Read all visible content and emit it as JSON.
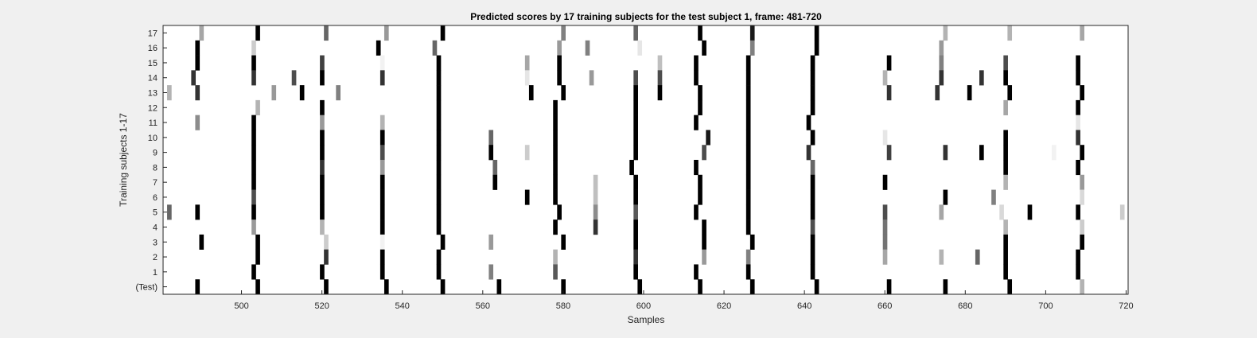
{
  "chart_data": {
    "type": "heatmap",
    "title": "Predicted scores by 17 training subjects for the test subject 1, frame: 481-720",
    "xlabel": "Samples",
    "ylabel": "Training subjects 1-17",
    "xlim": [
      481,
      720
    ],
    "xticks": [
      500,
      520,
      540,
      560,
      580,
      600,
      620,
      640,
      660,
      680,
      700,
      720
    ],
    "rows": [
      "17",
      "16",
      "15",
      "14",
      "13",
      "12",
      "11",
      "10",
      "9",
      "8",
      "7",
      "6",
      "5",
      "4",
      "3",
      "2",
      "1",
      "(Test)"
    ],
    "colormap": "gray (1 = black, 0 = white)",
    "grid": false,
    "cells": [
      {
        "row": "17",
        "points": [
          [
            490,
            0.35
          ],
          [
            504,
            1
          ],
          [
            521,
            0.6
          ],
          [
            536,
            0.4
          ],
          [
            550,
            1
          ],
          [
            580,
            0.5
          ],
          [
            598,
            0.6
          ],
          [
            614,
            1
          ],
          [
            627,
            0.9
          ],
          [
            643,
            1
          ],
          [
            675,
            0.3
          ],
          [
            691,
            0.3
          ],
          [
            709,
            0.35
          ]
        ]
      },
      {
        "row": "16",
        "points": [
          [
            489,
            1
          ],
          [
            503,
            0.2
          ],
          [
            534,
            1
          ],
          [
            548,
            0.6
          ],
          [
            579,
            0.4
          ],
          [
            586,
            0.5
          ],
          [
            599,
            0.1
          ],
          [
            615,
            1
          ],
          [
            627,
            0.5
          ],
          [
            643,
            1
          ],
          [
            674,
            0.4
          ]
        ]
      },
      {
        "row": "15",
        "points": [
          [
            489,
            1
          ],
          [
            503,
            1
          ],
          [
            520,
            0.75
          ],
          [
            535,
            0.05
          ],
          [
            549,
            1
          ],
          [
            571,
            0.35
          ],
          [
            579,
            1
          ],
          [
            604,
            0.25
          ],
          [
            613,
            1
          ],
          [
            626,
            1
          ],
          [
            642,
            1
          ],
          [
            661,
            1
          ],
          [
            674,
            0.5
          ],
          [
            690,
            0.7
          ],
          [
            708,
            1
          ]
        ]
      },
      {
        "row": "14",
        "points": [
          [
            488,
            0.8
          ],
          [
            503,
            0.8
          ],
          [
            513,
            0.7
          ],
          [
            520,
            1
          ],
          [
            535,
            0.8
          ],
          [
            549,
            1
          ],
          [
            571,
            0.1
          ],
          [
            579,
            1
          ],
          [
            587,
            0.4
          ],
          [
            598,
            0.7
          ],
          [
            604,
            0.7
          ],
          [
            613,
            1
          ],
          [
            626,
            1
          ],
          [
            642,
            1
          ],
          [
            660,
            0.3
          ],
          [
            674,
            0.8
          ],
          [
            684,
            0.8
          ],
          [
            690,
            1
          ],
          [
            708,
            1
          ]
        ]
      },
      {
        "row": "13",
        "points": [
          [
            482,
            0.3
          ],
          [
            489,
            0.8
          ],
          [
            508,
            0.4
          ],
          [
            515,
            1
          ],
          [
            524,
            0.5
          ],
          [
            549,
            1
          ],
          [
            572,
            1
          ],
          [
            580,
            1
          ],
          [
            598,
            1
          ],
          [
            604,
            1
          ],
          [
            614,
            1
          ],
          [
            626,
            1
          ],
          [
            642,
            1
          ],
          [
            661,
            0.8
          ],
          [
            673,
            0.8
          ],
          [
            681,
            1
          ],
          [
            691,
            1
          ],
          [
            709,
            1
          ]
        ]
      },
      {
        "row": "12",
        "points": [
          [
            504,
            0.3
          ],
          [
            520,
            1
          ],
          [
            549,
            1
          ],
          [
            578,
            1
          ],
          [
            598,
            1
          ],
          [
            614,
            1
          ],
          [
            626,
            1
          ],
          [
            642,
            1
          ],
          [
            690,
            0.35
          ],
          [
            708,
            1
          ]
        ]
      },
      {
        "row": "11",
        "points": [
          [
            489,
            0.45
          ],
          [
            503,
            1
          ],
          [
            520,
            0.4
          ],
          [
            535,
            0.3
          ],
          [
            549,
            1
          ],
          [
            578,
            1
          ],
          [
            598,
            1
          ],
          [
            613,
            1
          ],
          [
            626,
            1
          ],
          [
            641,
            1
          ],
          [
            708,
            0.1
          ]
        ]
      },
      {
        "row": "10",
        "points": [
          [
            503,
            1
          ],
          [
            520,
            1
          ],
          [
            535,
            1
          ],
          [
            549,
            1
          ],
          [
            562,
            0.6
          ],
          [
            578,
            1
          ],
          [
            598,
            1
          ],
          [
            616,
            0.9
          ],
          [
            626,
            1
          ],
          [
            642,
            1
          ],
          [
            660,
            0.1
          ],
          [
            690,
            1
          ],
          [
            708,
            0.8
          ]
        ]
      },
      {
        "row": "9",
        "points": [
          [
            503,
            1
          ],
          [
            520,
            1
          ],
          [
            535,
            0.7
          ],
          [
            549,
            1
          ],
          [
            562,
            1
          ],
          [
            571,
            0.2
          ],
          [
            578,
            1
          ],
          [
            598,
            1
          ],
          [
            615,
            0.7
          ],
          [
            626,
            1
          ],
          [
            641,
            0.8
          ],
          [
            661,
            0.75
          ],
          [
            675,
            0.8
          ],
          [
            684,
            1
          ],
          [
            690,
            1
          ],
          [
            702,
            0.05
          ],
          [
            709,
            1
          ]
        ]
      },
      {
        "row": "8",
        "points": [
          [
            503,
            1
          ],
          [
            520,
            0.8
          ],
          [
            535,
            0.4
          ],
          [
            549,
            1
          ],
          [
            563,
            0.6
          ],
          [
            578,
            1
          ],
          [
            597,
            1
          ],
          [
            613,
            1
          ],
          [
            626,
            1
          ],
          [
            642,
            0.6
          ],
          [
            690,
            1
          ],
          [
            708,
            1
          ]
        ]
      },
      {
        "row": "7",
        "points": [
          [
            503,
            1
          ],
          [
            520,
            1
          ],
          [
            535,
            1
          ],
          [
            549,
            1
          ],
          [
            563,
            1
          ],
          [
            578,
            1
          ],
          [
            588,
            0.25
          ],
          [
            598,
            1
          ],
          [
            614,
            1
          ],
          [
            626,
            1
          ],
          [
            642,
            1
          ],
          [
            660,
            1
          ],
          [
            690,
            0.3
          ],
          [
            709,
            0.4
          ]
        ]
      },
      {
        "row": "6",
        "points": [
          [
            503,
            0.7
          ],
          [
            520,
            1
          ],
          [
            535,
            1
          ],
          [
            549,
            1
          ],
          [
            571,
            1
          ],
          [
            578,
            1
          ],
          [
            588,
            0.25
          ],
          [
            598,
            1
          ],
          [
            614,
            1
          ],
          [
            626,
            1
          ],
          [
            642,
            1
          ],
          [
            675,
            1
          ],
          [
            687,
            0.5
          ],
          [
            709,
            0.15
          ]
        ]
      },
      {
        "row": "5",
        "points": [
          [
            482,
            0.6
          ],
          [
            489,
            1
          ],
          [
            503,
            1
          ],
          [
            520,
            1
          ],
          [
            535,
            1
          ],
          [
            549,
            1
          ],
          [
            579,
            1
          ],
          [
            588,
            0.45
          ],
          [
            598,
            0.65
          ],
          [
            613,
            1
          ],
          [
            626,
            1
          ],
          [
            642,
            1
          ],
          [
            660,
            0.7
          ],
          [
            674,
            0.35
          ],
          [
            689,
            0.15
          ],
          [
            696,
            1
          ],
          [
            708,
            1
          ],
          [
            719,
            0.2
          ]
        ]
      },
      {
        "row": "4",
        "points": [
          [
            503,
            0.4
          ],
          [
            520,
            0.3
          ],
          [
            535,
            1
          ],
          [
            549,
            1
          ],
          [
            578,
            1
          ],
          [
            588,
            0.8
          ],
          [
            598,
            1
          ],
          [
            615,
            1
          ],
          [
            626,
            1
          ],
          [
            642,
            0.7
          ],
          [
            660,
            0.55
          ],
          [
            690,
            0.3
          ],
          [
            709,
            0.2
          ]
        ]
      },
      {
        "row": "3",
        "points": [
          [
            490,
            1
          ],
          [
            504,
            1
          ],
          [
            521,
            0.2
          ],
          [
            535,
            0.05
          ],
          [
            550,
            1
          ],
          [
            562,
            0.4
          ],
          [
            580,
            1
          ],
          [
            598,
            1
          ],
          [
            615,
            1
          ],
          [
            627,
            1
          ],
          [
            642,
            1
          ],
          [
            660,
            0.55
          ],
          [
            690,
            1
          ],
          [
            709,
            1
          ]
        ]
      },
      {
        "row": "2",
        "points": [
          [
            504,
            1
          ],
          [
            521,
            0.8
          ],
          [
            535,
            1
          ],
          [
            549,
            1
          ],
          [
            578,
            0.3
          ],
          [
            598,
            0.8
          ],
          [
            615,
            0.4
          ],
          [
            626,
            0.5
          ],
          [
            642,
            1
          ],
          [
            660,
            0.35
          ],
          [
            674,
            0.3
          ],
          [
            683,
            0.6
          ],
          [
            690,
            1
          ],
          [
            708,
            1
          ]
        ]
      },
      {
        "row": "1",
        "points": [
          [
            503,
            1
          ],
          [
            520,
            1
          ],
          [
            535,
            1
          ],
          [
            549,
            1
          ],
          [
            562,
            0.5
          ],
          [
            578,
            0.65
          ],
          [
            598,
            1
          ],
          [
            613,
            1
          ],
          [
            626,
            1
          ],
          [
            642,
            1
          ],
          [
            690,
            1
          ],
          [
            708,
            1
          ]
        ]
      },
      {
        "row": "(Test)",
        "points": [
          [
            489,
            1
          ],
          [
            504,
            1
          ],
          [
            521,
            1
          ],
          [
            536,
            1
          ],
          [
            550,
            1
          ],
          [
            564,
            1
          ],
          [
            580,
            1
          ],
          [
            599,
            1
          ],
          [
            614,
            1
          ],
          [
            627,
            1
          ],
          [
            643,
            1
          ],
          [
            661,
            1
          ],
          [
            675,
            1
          ],
          [
            691,
            1
          ],
          [
            709,
            0.3
          ]
        ]
      }
    ]
  }
}
